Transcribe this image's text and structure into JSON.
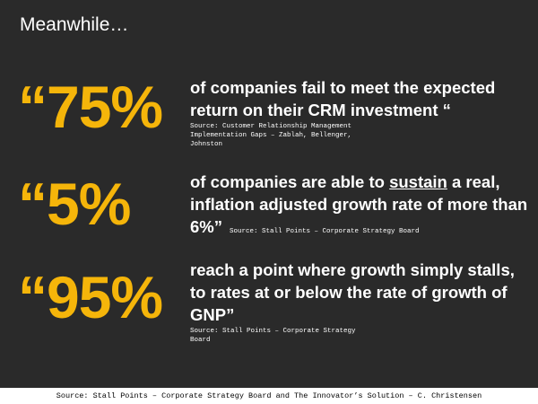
{
  "title": "Meanwhile…",
  "stats": [
    {
      "number": "“75%",
      "text": [
        "of companies fail to meet the expected return on their CRM investment “"
      ],
      "source": "Source: Customer Relationship Management Implementation Gaps – Zablah, Bellenger, Johnston"
    },
    {
      "number": "“5%",
      "text": [
        "of companies are able to ",
        "sustain",
        " a real, inflation adjusted growth rate of more than 6%”"
      ],
      "source": "Source: Stall Points – Corporate Strategy Board"
    },
    {
      "number": "“95%",
      "text": [
        "reach a point where growth simply stalls, to rates at or below the rate of growth of GNP”"
      ],
      "source": "Source: Stall Points – Corporate Strategy Board"
    }
  ],
  "footer": "Source: Stall Points – Corporate Strategy Board and The Innovator’s Solution – C. Christensen"
}
